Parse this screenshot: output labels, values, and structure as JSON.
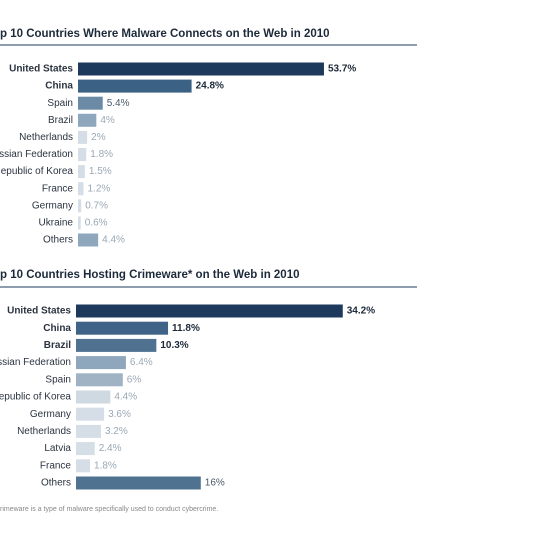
{
  "chart_data": [
    {
      "type": "bar",
      "title": "p 10 Countries Where Malware Connects on the Web in 2010",
      "categories": [
        "United States",
        "China",
        "Spain",
        "Brazil",
        "Netherlands",
        "ssian Federation",
        "epublic of Korea",
        "France",
        "Germany",
        "Ukraine",
        "Others"
      ],
      "values": [
        53.7,
        24.8,
        5.4,
        4,
        2,
        1.8,
        1.5,
        1.2,
        0.7,
        0.6,
        4.4
      ],
      "value_labels": [
        "53.7%",
        "24.8%",
        "5.4%",
        "4%",
        "2%",
        "1.8%",
        "1.5%",
        "1.2%",
        "0.7%",
        "0.6%",
        "4.4%"
      ],
      "colors": [
        "#1d3a5c",
        "#3b6184",
        "#6b8aa5",
        "#8ea7bc",
        "#d5dee6",
        "#d5dee6",
        "#d5dee6",
        "#d5dee6",
        "#d5dee6",
        "#d5dee6",
        "#8ea7bc"
      ]
    },
    {
      "type": "bar",
      "title": "p 10 Countries Hosting Crimeware* on the Web in 2010",
      "categories": [
        "United States",
        "China",
        "Brazil",
        "ssian Federation",
        "Spain",
        "epublic of Korea",
        "Germany",
        "Netherlands",
        "Latvia",
        "France",
        "Others"
      ],
      "values": [
        34.2,
        11.8,
        10.3,
        6.4,
        6,
        4.4,
        3.6,
        3.2,
        2.4,
        1.8,
        16
      ],
      "value_labels": [
        "34.2%",
        "11.8%",
        "10.3%",
        "6.4%",
        "6%",
        "4.4%",
        "3.6%",
        "3.2%",
        "2.4%",
        "1.8%",
        "16%"
      ],
      "colors": [
        "#1d3a5c",
        "#3f6487",
        "#4f7291",
        "#8ea7bc",
        "#9fb3c5",
        "#cfd9e2",
        "#d5dee6",
        "#d5dee6",
        "#d5dee6",
        "#d5dee6",
        "#4f7291"
      ],
      "footnote": "rimeware is a type of malware specifically used to conduct cybercrime."
    }
  ]
}
